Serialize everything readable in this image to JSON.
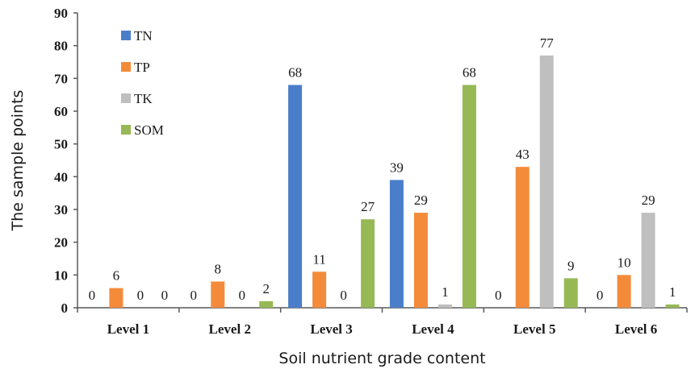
{
  "chart_data": {
    "type": "bar",
    "categories": [
      "Level 1",
      "Level 2",
      "Level 3",
      "Level 4",
      "Level 5",
      "Level 6"
    ],
    "series": [
      {
        "name": "TN",
        "color": "#4a7ec9",
        "values": [
          0,
          0,
          68,
          39,
          0,
          0
        ]
      },
      {
        "name": "TP",
        "color": "#f48b3a",
        "values": [
          6,
          8,
          11,
          29,
          43,
          10
        ]
      },
      {
        "name": "TK",
        "color": "#bfbfbf",
        "values": [
          0,
          0,
          0,
          1,
          77,
          29
        ]
      },
      {
        "name": "SOM",
        "color": "#96b955",
        "values": [
          0,
          2,
          27,
          68,
          9,
          1
        ]
      }
    ],
    "data_labels": [
      [
        "0",
        "0",
        "68",
        "39",
        "0",
        "0"
      ],
      [
        "6",
        "8",
        "11",
        "29",
        "43",
        "10"
      ],
      [
        "0",
        "0",
        "0",
        "1",
        "77",
        "29"
      ],
      [
        "0",
        "2",
        "27",
        "68",
        "9",
        "1"
      ]
    ],
    "title": "",
    "xlabel": "Soil nutrient grade content",
    "ylabel": "The sample points",
    "ylim": [
      0,
      90
    ],
    "yticks": [
      "0",
      "10",
      "20",
      "30",
      "40",
      "50",
      "60",
      "70",
      "80",
      "90"
    ],
    "legend_position": "top-left, inside plot",
    "grid": false
  }
}
